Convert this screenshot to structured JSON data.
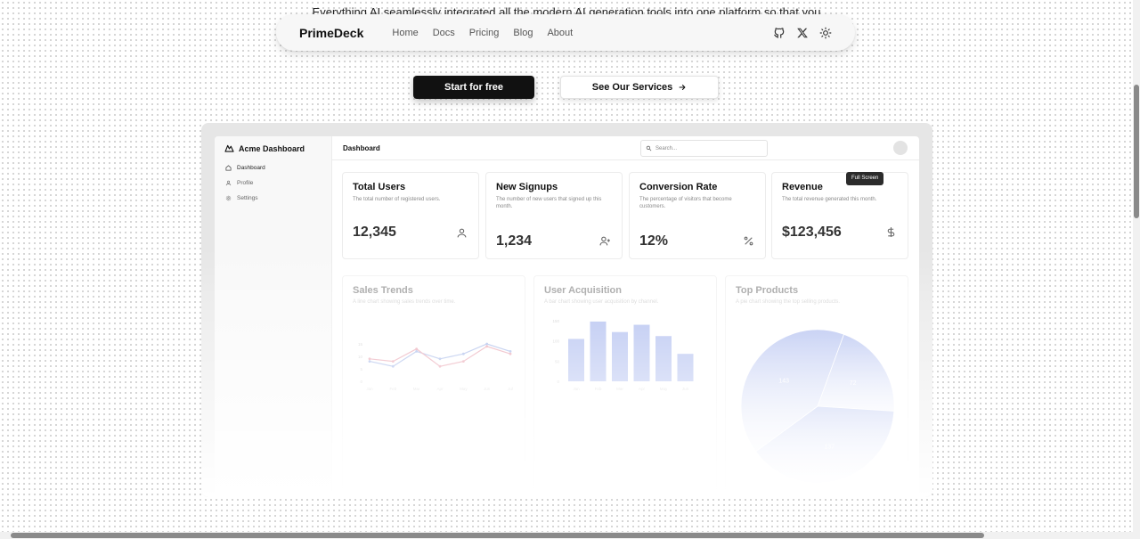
{
  "hero": {
    "text": "Everything AI seamlessly integrated all the modern AI generation tools into one platform so that you"
  },
  "navbar": {
    "brand": "PrimeDeck",
    "links": [
      "Home",
      "Docs",
      "Pricing",
      "Blog",
      "About"
    ],
    "icons": [
      "github-icon",
      "x-twitter-icon",
      "sun-icon"
    ]
  },
  "cta": {
    "primary": "Start for free",
    "secondary": "See Our Services"
  },
  "dashboard": {
    "brand": "Acme Dashboard",
    "sidebar": [
      "Dashboard",
      "Profile",
      "Settings"
    ],
    "header_title": "Dashboard",
    "search_placeholder": "Search...",
    "tooltip": "Full Screen",
    "cards": [
      {
        "title": "Total Users",
        "desc": "The total number of registered users.",
        "value": "12,345",
        "icon": "user-icon"
      },
      {
        "title": "New Signups",
        "desc": "The number of new users that signed up this month.",
        "value": "1,234",
        "icon": "user-plus-icon"
      },
      {
        "title": "Conversion Rate",
        "desc": "The percentage of visitors that become customers.",
        "value": "12%",
        "icon": "percent-icon"
      },
      {
        "title": "Revenue",
        "desc": "The total revenue generated this month.",
        "value": "$123,456",
        "icon": "dollar-icon"
      }
    ],
    "charts": [
      {
        "title": "Sales Trends",
        "desc": "A line chart showing sales trends over time."
      },
      {
        "title": "User Acquisition",
        "desc": "A bar chart showing user acquisition by channel."
      },
      {
        "title": "Top Products",
        "desc": "A pie chart showing the top selling products."
      }
    ]
  },
  "chart_data": [
    {
      "type": "line",
      "x": [
        "Jan",
        "Feb",
        "Mar",
        "Apr",
        "May",
        "Jun",
        "Jul"
      ],
      "ylim": [
        0,
        20
      ],
      "yticks": [
        0,
        5,
        10,
        15
      ],
      "series": [
        {
          "values": [
            8,
            6,
            12,
            9,
            11,
            15,
            12
          ],
          "color": "#9bb0e6"
        },
        {
          "values": [
            9,
            8,
            13,
            6,
            8,
            14,
            11
          ],
          "color": "#e79aa8"
        }
      ]
    },
    {
      "type": "bar",
      "categories": [
        "Jan",
        "Feb",
        "Mar",
        "Apr",
        "May",
        "Jun"
      ],
      "ylim": [
        0,
        150
      ],
      "yticks": [
        0,
        50,
        100,
        150
      ],
      "values": [
        105,
        148,
        122,
        140,
        112,
        68
      ],
      "color": "#a9b8ee"
    },
    {
      "type": "pie",
      "values": [
        72,
        137,
        143
      ],
      "labels": [
        "72",
        "137",
        "143"
      ],
      "color": "#a9b8ee"
    }
  ]
}
